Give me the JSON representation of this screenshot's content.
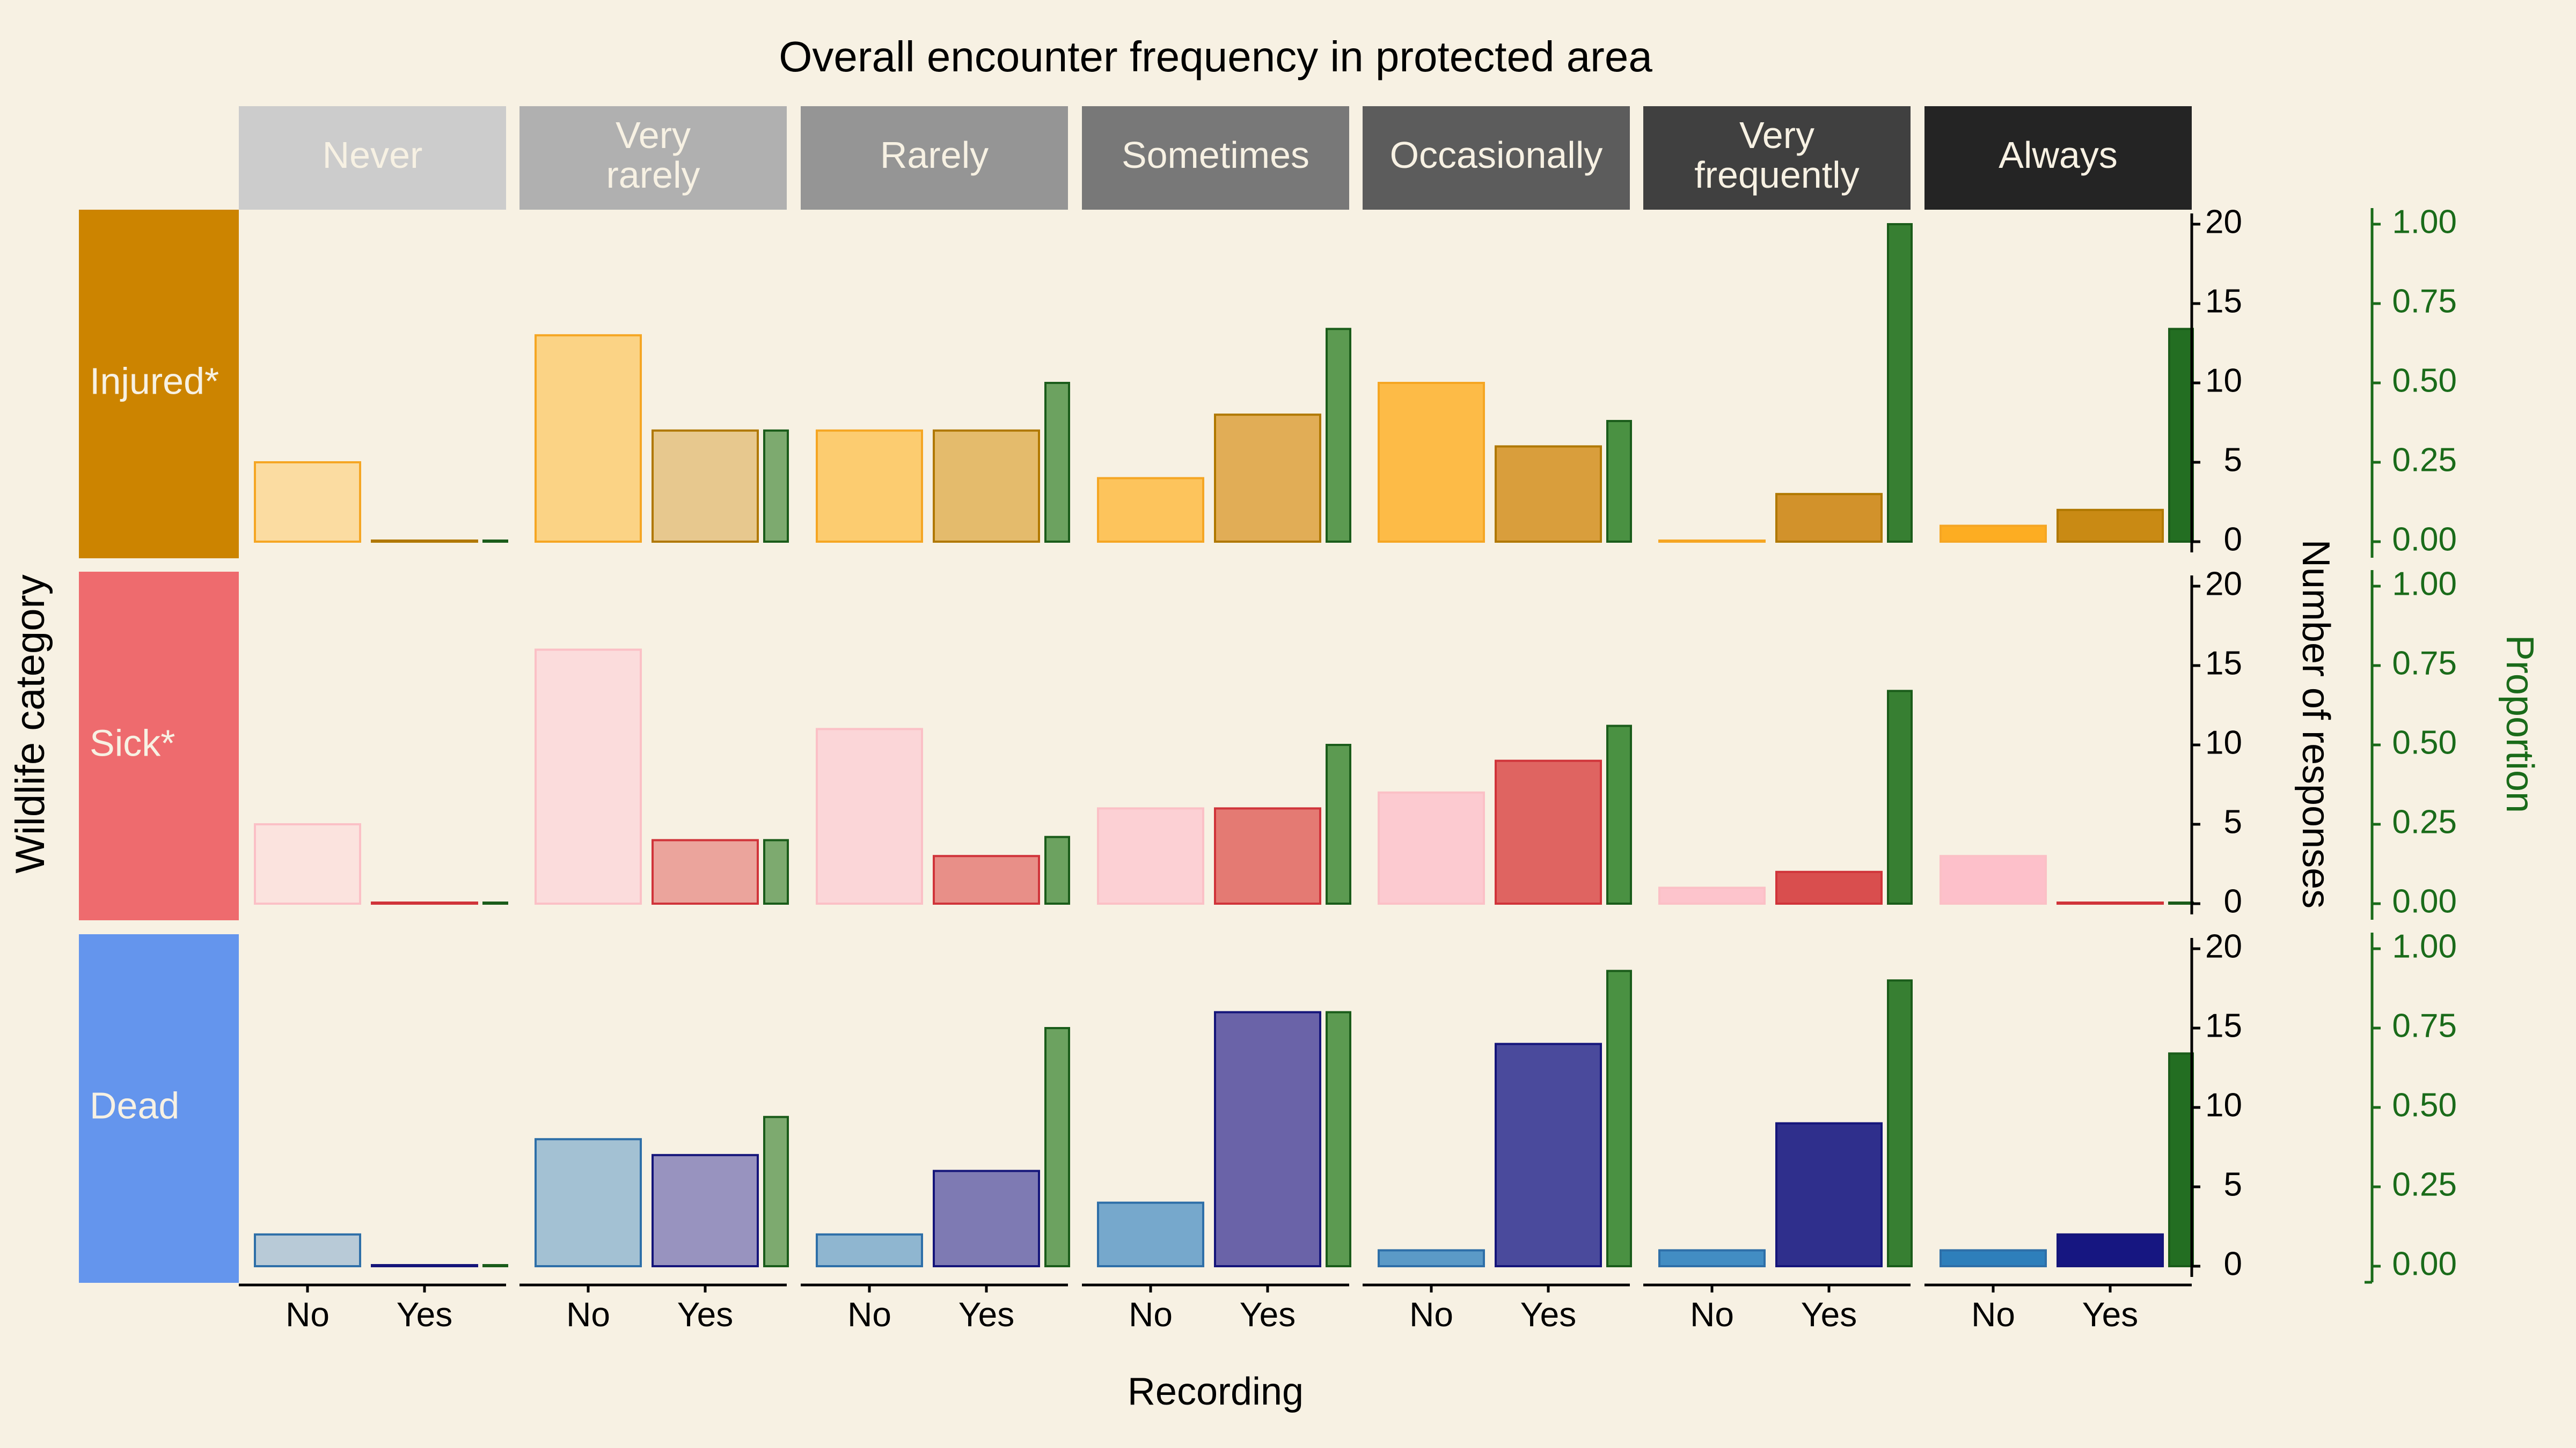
{
  "chart_data": {
    "type": "bar",
    "title": "Overall encounter frequency in protected area",
    "xlabel": "Recording",
    "ylabel": "Wildlife category",
    "y_right_label": "Number of responses",
    "y2_label": "Proportion",
    "column_facets": [
      "Never",
      "Very\nrarely",
      "Rarely",
      "Sometimes",
      "Occasionally",
      "Very\nfrequently",
      "Always"
    ],
    "row_facets": [
      "Injured*",
      "Sick*",
      "Dead"
    ],
    "categories": [
      "No",
      "Yes"
    ],
    "ylim": [
      0,
      20
    ],
    "y_ticks": [
      0,
      5,
      10,
      15,
      20
    ],
    "y2lim": [
      0,
      1
    ],
    "y2_ticks": [
      "0.00",
      "0.25",
      "0.50",
      "0.75",
      "1.00"
    ],
    "grid": false,
    "series": [
      {
        "name": "Injured*",
        "no": [
          5,
          13,
          7,
          4,
          10,
          0,
          1
        ],
        "yes": [
          0,
          7,
          7,
          8,
          6,
          3,
          2
        ],
        "proportion": [
          0.0,
          0.35,
          0.5,
          0.67,
          0.38,
          1.0,
          0.67
        ]
      },
      {
        "name": "Sick*",
        "no": [
          5,
          16,
          11,
          6,
          7,
          1,
          3
        ],
        "yes": [
          0,
          4,
          3,
          6,
          9,
          2,
          0
        ],
        "proportion": [
          0.0,
          0.2,
          0.21,
          0.5,
          0.56,
          0.67,
          0.0
        ]
      },
      {
        "name": "Dead",
        "no": [
          2,
          8,
          2,
          4,
          1,
          1,
          1
        ],
        "yes": [
          0,
          7,
          6,
          16,
          14,
          9,
          2
        ],
        "proportion": [
          0.0,
          0.47,
          0.75,
          0.8,
          0.93,
          0.9,
          0.67
        ]
      }
    ]
  },
  "colors": {
    "background": "#f7f1e3",
    "text": "#000000",
    "proportion_axis": "#1a6b1a",
    "row_strips": [
      "#cc8400",
      "#ee6b6e",
      "#6495ed"
    ],
    "row_strip_text": "#f7f1e3",
    "column_strip_fills": [
      "#cccccc",
      "#b0b0b0",
      "#959595",
      "#787878",
      "#5c5c5c",
      "#404040",
      "#242424"
    ],
    "column_strip_text": "#f7f1e3",
    "no_fill": {
      "Injured*": [
        "#fbdca1",
        "#fbd385",
        "#fccc70",
        "#fdc45c",
        "#fdbb47",
        "#fdb434",
        "#fdad22"
      ],
      "Sick*": [
        "#fbe3de",
        "#fbdcdc",
        "#fbd6d8",
        "#fcd0d4",
        "#fccad0",
        "#fdc4cc",
        "#fdc0ca"
      ],
      "Dead": [
        "#b8cad7",
        "#a3c1d3",
        "#8fb6d0",
        "#76a8cc",
        "#5b9ac7",
        "#428dc3",
        "#2e7fbb"
      ]
    },
    "no_stroke": [
      "#f5a623",
      "#fbc0c6",
      "#2e6fa8"
    ],
    "yes_fill": {
      "Injured*": [
        "#c99a3d",
        "#e7c88e",
        "#e4bb6c",
        "#e1ad56",
        "#d99e3c",
        "#d2922b",
        "#c98a14"
      ],
      "Sick*": [
        "#d94545",
        "#eba49c",
        "#e88f88",
        "#e47a73",
        "#df6461",
        "#d94e4e",
        "#d53a3a"
      ],
      "Dead": [
        "#2a2a7a",
        "#9893bf",
        "#7e7ab3",
        "#6a63a8",
        "#4a4a9c",
        "#2f2f8c",
        "#161681"
      ]
    },
    "yes_stroke": [
      "#b07800",
      "#d0343a",
      "#15157a"
    ],
    "proportion_fill": [
      "#8ab37d",
      "#7daa6f",
      "#6ca260",
      "#5c9a51",
      "#4a9142",
      "#377f32",
      "#236e22"
    ],
    "proportion_stroke": "#1a5c1a"
  }
}
